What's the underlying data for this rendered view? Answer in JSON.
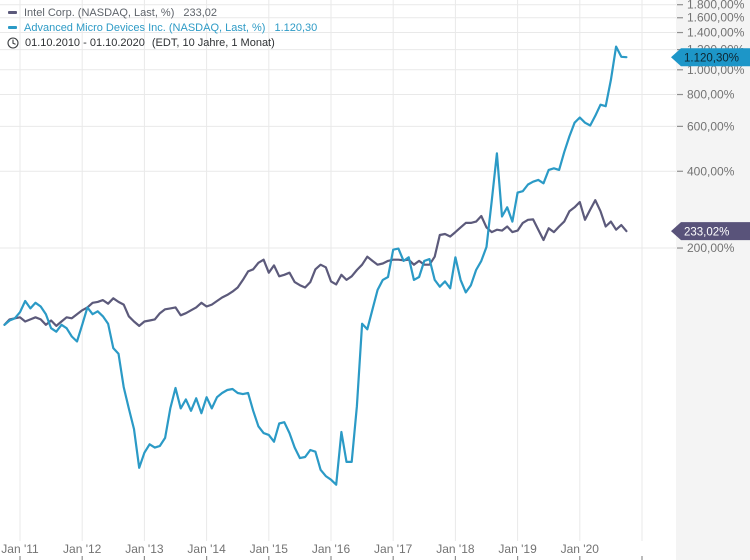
{
  "legend": {
    "series1_label": "Intel Corp. (NASDAQ, Last, %)",
    "series1_value": "233,02",
    "series2_label": "Advanced Micro Devices Inc. (NASDAQ, Last, %)",
    "series2_value": "1.120,30",
    "timeframe": "01.10.2010 - 01.10.2020",
    "timeframe_detail": "(EDT, 10 Jahre, 1 Monat)"
  },
  "colors": {
    "intel_line": "#5C5A7B",
    "amd_line": "#2B9AC6",
    "grid": "#e9e9e9",
    "axis_background": "#f4f4f4",
    "tick_text": "#737373",
    "tick_mark": "#8f8f8f"
  },
  "chart_data": {
    "type": "line",
    "title": "",
    "x_unit": "month",
    "x_range": [
      "2010-10",
      "2020-10"
    ],
    "y_scale": "log",
    "grid": true,
    "legend_position": "top-left",
    "y_ticks": [
      {
        "value": 1800,
        "label": "1.800,00%"
      },
      {
        "value": 1600,
        "label": "1.600,00%"
      },
      {
        "value": 1400,
        "label": "1.400,00%"
      },
      {
        "value": 1200,
        "label": "1.200,00%"
      },
      {
        "value": 1000,
        "label": "1.000,00%"
      },
      {
        "value": 800,
        "label": "800,00%"
      },
      {
        "value": 600,
        "label": "600,00%"
      },
      {
        "value": 400,
        "label": "400,00%"
      },
      {
        "value": 200,
        "label": "200,00%"
      }
    ],
    "x_ticks": [
      {
        "month_index": 3,
        "label": "Jan '11"
      },
      {
        "month_index": 15,
        "label": "Jan '12"
      },
      {
        "month_index": 27,
        "label": "Jan '13"
      },
      {
        "month_index": 39,
        "label": "Jan '14"
      },
      {
        "month_index": 51,
        "label": "Jan '15"
      },
      {
        "month_index": 63,
        "label": "Jan '16"
      },
      {
        "month_index": 75,
        "label": "Jan '17"
      },
      {
        "month_index": 87,
        "label": "Jan '18"
      },
      {
        "month_index": 99,
        "label": "Jan '19"
      },
      {
        "month_index": 111,
        "label": "Jan '20"
      },
      {
        "month_index": 123,
        "label": ""
      }
    ],
    "series": [
      {
        "id": "intel",
        "name": "Intel Corp. (NASDAQ, Last, %)",
        "color": "#5C5A7B",
        "last_value": 233.02,
        "badge_label": "233,02%",
        "badge_bg": "#59537A",
        "badge_text_color": "#ffffff",
        "values": [
          100,
          105,
          106,
          107,
          103,
          105,
          107,
          105,
          100,
          104,
          99,
          103,
          107,
          106,
          110,
          114,
          117,
          122,
          123,
          125,
          121,
          127,
          123,
          120,
          108,
          103,
          99,
          103,
          104,
          105,
          111,
          115,
          116,
          117,
          109,
          111,
          114,
          117,
          122,
          118,
          120,
          124,
          128,
          131,
          135,
          140,
          150,
          162,
          165,
          175,
          180,
          160,
          171,
          155,
          157,
          160,
          147,
          143,
          140,
          147,
          165,
          172,
          168,
          148,
          144,
          157,
          150,
          155,
          164,
          172,
          185,
          178,
          172,
          174,
          178,
          180,
          180,
          179,
          180,
          172,
          178,
          172,
          172,
          185,
          225,
          227,
          222,
          231,
          241,
          251,
          251,
          254,
          267,
          241,
          231,
          236,
          234,
          243,
          231,
          234,
          251,
          258,
          259,
          236,
          215,
          239,
          231,
          243,
          254,
          279,
          289,
          303,
          258,
          283,
          308,
          279,
          243,
          254,
          236,
          246,
          233.02
        ]
      },
      {
        "id": "amd",
        "name": "Advanced Micro Devices Inc. (NASDAQ, Last, %)",
        "color": "#2B9AC6",
        "last_value": 1120.3,
        "badge_label": "1.120,30%",
        "badge_bg": "#1D96C8",
        "badge_text_color": "#0d2530",
        "values": [
          100,
          104,
          106,
          112,
          124,
          116,
          122,
          118,
          110,
          97,
          94,
          100,
          97,
          90,
          86,
          100,
          117,
          110,
          113,
          108,
          101,
          81,
          77,
          57,
          47,
          39,
          27.5,
          31.5,
          34,
          33,
          33.5,
          36,
          47,
          56.5,
          47,
          51,
          46,
          51.5,
          45,
          52,
          47,
          52,
          54,
          55.5,
          56,
          54,
          53.5,
          54,
          46,
          40,
          37.6,
          37,
          34.8,
          41,
          41.5,
          37.6,
          33,
          30,
          30.3,
          32.3,
          31.8,
          27,
          25.5,
          24.7,
          23.6,
          38,
          29,
          29,
          48,
          101,
          96,
          115,
          137,
          150,
          154,
          197,
          199,
          178,
          184,
          150,
          154,
          178,
          181,
          150,
          141,
          148,
          139,
          184,
          150,
          134,
          143,
          164,
          178,
          202,
          305,
          470,
          266,
          289,
          254,
          330,
          334,
          355,
          364,
          370,
          359,
          405,
          411,
          405,
          475,
          548,
          620,
          650,
          620,
          605,
          660,
          730,
          720,
          913,
          1233,
          1125,
          1120.3
        ]
      }
    ]
  }
}
